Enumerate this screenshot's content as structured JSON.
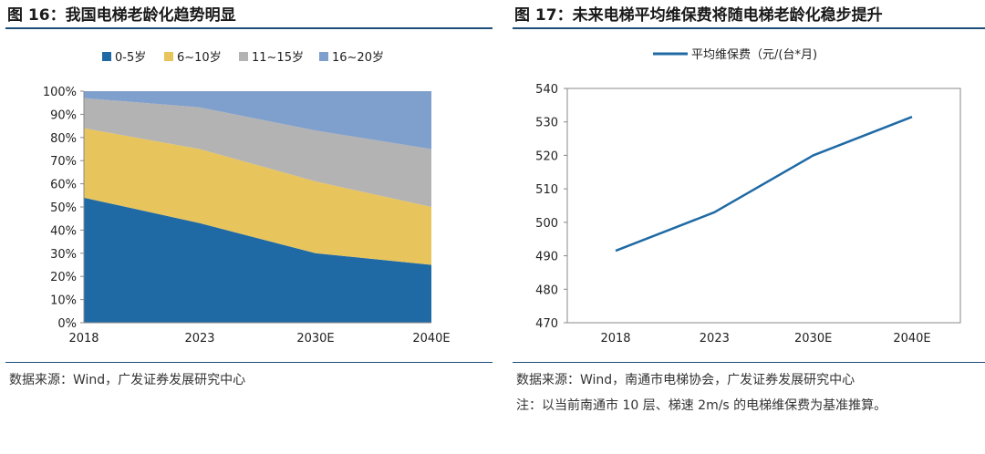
{
  "left": {
    "title": "图 16：我国电梯老龄化趋势明显",
    "source": "数据来源：Wind，广发证券发展研究中心"
  },
  "right": {
    "title": "图 17：未来电梯平均维保费将随电梯老龄化稳步提升",
    "source": "数据来源：Wind，南通市电梯协会，广发证券发展研究中心",
    "note": "注：以当前南通市 10 层、梯速 2m/s 的电梯维保费为基准推算。"
  },
  "chart_data": [
    {
      "type": "area",
      "stacked": true,
      "percent": true,
      "title": "我国电梯老龄化趋势明显",
      "categories": [
        "2018",
        "2023",
        "2030E",
        "2040E"
      ],
      "series": [
        {
          "name": "0-5岁",
          "color": "#1f6aa5",
          "values": [
            54,
            43,
            30,
            25
          ]
        },
        {
          "name": "6~10岁",
          "color": "#e8c45c",
          "values": [
            30,
            32,
            31,
            25
          ]
        },
        {
          "name": "11~15岁",
          "color": "#b3b3b3",
          "values": [
            13,
            18,
            22,
            25
          ]
        },
        {
          "name": "16~20岁",
          "color": "#7f9fcc",
          "values": [
            3,
            7,
            17,
            25
          ]
        }
      ],
      "ylim": [
        0,
        100
      ],
      "yticks": [
        "0%",
        "10%",
        "20%",
        "30%",
        "40%",
        "50%",
        "60%",
        "70%",
        "80%",
        "90%",
        "100%"
      ],
      "legend_position": "top"
    },
    {
      "type": "line",
      "title": "未来电梯平均维保费将随电梯老龄化稳步提升",
      "categories": [
        "2018",
        "2023",
        "2030E",
        "2040E"
      ],
      "series": [
        {
          "name": "平均维保费（元/(台*月)",
          "color": "#1f6aa5",
          "values": [
            491.5,
            503,
            520,
            531.5
          ]
        }
      ],
      "ylim": [
        470,
        540
      ],
      "yticks": [
        "470",
        "480",
        "490",
        "500",
        "510",
        "520",
        "530",
        "540"
      ],
      "grid": false,
      "legend_position": "top"
    }
  ]
}
